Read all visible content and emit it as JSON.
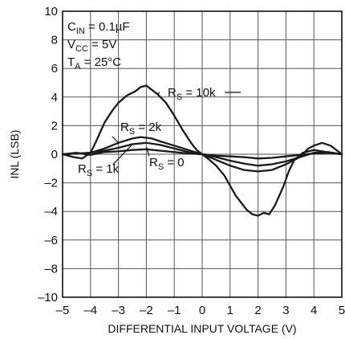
{
  "chart_data": {
    "type": "line",
    "xlabel": "DIFFERENTIAL INPUT VOLTAGE (V)",
    "ylabel": "INL (LSB)",
    "xlim": [
      -5,
      5
    ],
    "ylim": [
      -10,
      10
    ],
    "xticks": [
      -5,
      -4,
      -3,
      -2,
      -1,
      0,
      1,
      2,
      3,
      4,
      5
    ],
    "yticks": [
      -10,
      -8,
      -6,
      -4,
      -2,
      0,
      2,
      4,
      6,
      8,
      10
    ],
    "xtick_labels": [
      "–5",
      "–4",
      "–3",
      "–2",
      "–1",
      "0",
      "1",
      "2",
      "3",
      "4",
      "5"
    ],
    "ytick_labels": [
      "–10",
      "–8",
      "–6",
      "–4",
      "–2",
      "0",
      "2",
      "4",
      "6",
      "8",
      "10"
    ],
    "grid": true,
    "conditions": [
      {
        "main": "C",
        "sub": "IN",
        "rest": " = 0.1µF"
      },
      {
        "main": "V",
        "sub": "CC",
        "rest": " = 5V"
      },
      {
        "main": "T",
        "sub": "A",
        "rest": " = 25°C"
      }
    ],
    "series": [
      {
        "label": {
          "main": "R",
          "sub": "S",
          "rest": " = 10k"
        },
        "x": [
          -5,
          -4.6,
          -4.3,
          -4.0,
          -3.8,
          -3.5,
          -3.2,
          -3.0,
          -2.7,
          -2.4,
          -2.2,
          -2.0,
          -1.8,
          -1.6,
          -1.3,
          -1.0,
          -0.7,
          -0.4,
          -0.2,
          0,
          0.2,
          0.5,
          0.8,
          1.0,
          1.2,
          1.4,
          1.6,
          1.8,
          2.0,
          2.2,
          2.4,
          2.6,
          2.9,
          3.1,
          3.3,
          3.6,
          4.0,
          4.3,
          4.6,
          5
        ],
        "y": [
          0,
          -0.2,
          -0.3,
          0.1,
          0.9,
          2.2,
          3.1,
          3.6,
          4.1,
          4.4,
          4.7,
          4.8,
          4.5,
          4.2,
          3.6,
          2.7,
          1.7,
          0.8,
          0.3,
          0,
          -0.3,
          -0.8,
          -1.5,
          -2.2,
          -2.9,
          -3.4,
          -3.9,
          -4.2,
          -4.3,
          -4.1,
          -4.2,
          -3.6,
          -2.3,
          -1.2,
          -0.4,
          0.1,
          0.3,
          0.2,
          0.1,
          0
        ]
      },
      {
        "label": {
          "main": "R",
          "sub": "S",
          "rest": " = 2k"
        },
        "x": [
          -5,
          -4.5,
          -4.0,
          -3.5,
          -3.0,
          -2.5,
          -2.2,
          -2.0,
          -1.8,
          -1.5,
          -1.0,
          -0.5,
          0,
          0.5,
          1.0,
          1.5,
          2.0,
          2.5,
          3.0,
          3.5,
          3.8,
          4.0,
          4.3,
          4.6,
          5
        ],
        "y": [
          0,
          0.05,
          0.1,
          0.4,
          0.8,
          1.1,
          1.2,
          1.15,
          1.1,
          0.9,
          0.6,
          0.3,
          0,
          -0.4,
          -0.8,
          -1.1,
          -1.2,
          -1.1,
          -0.7,
          -0.2,
          0.4,
          0.6,
          0.8,
          0.6,
          0
        ]
      },
      {
        "label": {
          "main": "R",
          "sub": "S",
          "rest": " = 1k"
        },
        "x": [
          -5,
          -4.5,
          -4.0,
          -3.5,
          -3.0,
          -2.5,
          -2.0,
          -1.5,
          -1.0,
          -0.5,
          0,
          0.5,
          1.0,
          1.5,
          2.0,
          2.5,
          3.0,
          3.5,
          4.0,
          4.5,
          5
        ],
        "y": [
          0,
          0.05,
          0.1,
          0.25,
          0.45,
          0.7,
          0.8,
          0.65,
          0.4,
          0.15,
          0,
          -0.2,
          -0.45,
          -0.65,
          -0.8,
          -0.7,
          -0.5,
          -0.2,
          0.1,
          0.15,
          0
        ]
      },
      {
        "label": {
          "main": "R",
          "sub": "S",
          "rest": " = 0"
        },
        "x": [
          -5,
          -4.5,
          -4.0,
          -3.5,
          -3.0,
          -2.5,
          -2.0,
          -1.5,
          -1.0,
          -0.5,
          0,
          0.5,
          1.0,
          1.5,
          2.0,
          2.5,
          3.0,
          3.5,
          4.0,
          4.5,
          5
        ],
        "y": [
          0,
          0.1,
          -0.05,
          0.15,
          0.2,
          0.3,
          0.35,
          0.25,
          0.15,
          0.05,
          0,
          -0.1,
          -0.15,
          -0.2,
          -0.3,
          -0.25,
          -0.15,
          -0.05,
          0.05,
          0.1,
          0
        ]
      }
    ]
  }
}
